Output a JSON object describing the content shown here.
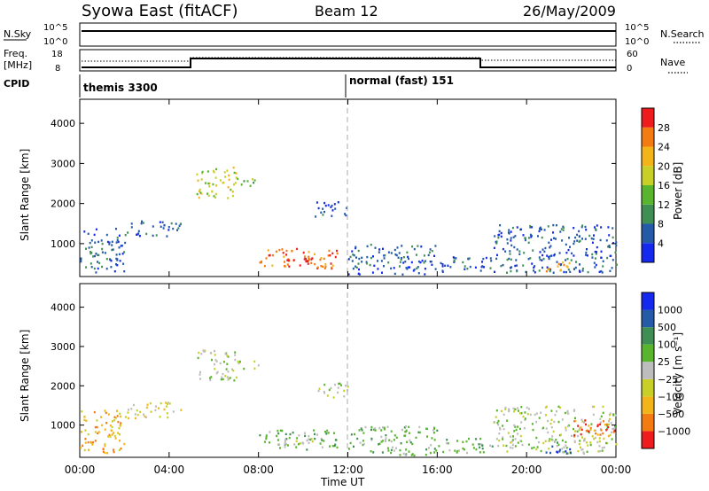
{
  "header": {
    "title": "Syowa East (fitACF)",
    "beam": "Beam 12",
    "date": "26/May/2009"
  },
  "status_panels": {
    "nsky_label": "N.Sky",
    "nsky_ticks": [
      "10^5",
      "10^0"
    ],
    "nsearch_label": "N.Search",
    "nsearch_ticks": [
      "10^5",
      "10^0"
    ],
    "freq_label_line1": "Freq.",
    "freq_label_line2": "[MHz]",
    "freq_ticks": [
      "18",
      "8"
    ],
    "nave_label": "Nave",
    "nave_ticks": [
      "60",
      "0"
    ],
    "cpid_label": "CPID",
    "cpid_segments": [
      {
        "name": "themis",
        "text": "themis 3300"
      },
      {
        "name": "normal",
        "text": "normal (fast) 151"
      }
    ]
  },
  "chart_data": [
    {
      "type": "heatmap",
      "panel": "power",
      "ylabel": "Slant Range [km]",
      "ylim": [
        180,
        4600
      ],
      "yticks": [
        "1000",
        "2000",
        "3000",
        "4000"
      ],
      "xticks": [
        "00:00",
        "04:00",
        "08:00",
        "12:00",
        "16:00",
        "20:00",
        "00:00"
      ],
      "colorbar_label": "Power [dB]",
      "colorbar_ticks": [
        "4",
        "8",
        "12",
        "16",
        "20",
        "24",
        "28"
      ],
      "colors": [
        "#1428ee",
        "#245aa8",
        "#3f8f55",
        "#5ab52e",
        "#c8d028",
        "#f2b418",
        "#f47a12",
        "#ee1c1c"
      ],
      "regions": [
        {
          "t0": 0.0,
          "t1": 2.0,
          "r0": 300,
          "r1": 1400,
          "v": 1
        },
        {
          "t0": 2.0,
          "t1": 4.5,
          "r0": 1200,
          "r1": 1600,
          "v": 1
        },
        {
          "t0": 5.2,
          "t1": 7.0,
          "r0": 2150,
          "r1": 2950,
          "v": 4
        },
        {
          "t0": 7.0,
          "t1": 8.0,
          "r0": 2400,
          "r1": 2650,
          "v": 3
        },
        {
          "t0": 8.0,
          "t1": 11.5,
          "r0": 400,
          "r1": 900,
          "v": 6
        },
        {
          "t0": 9.0,
          "t1": 10.5,
          "r0": 450,
          "r1": 700,
          "v": 7
        },
        {
          "t0": 10.5,
          "t1": 12.0,
          "r0": 1700,
          "r1": 2100,
          "v": 1
        },
        {
          "t0": 12.0,
          "t1": 16.0,
          "r0": 250,
          "r1": 1000,
          "v": 1
        },
        {
          "t0": 16.0,
          "t1": 18.5,
          "r0": 300,
          "r1": 700,
          "v": 1
        },
        {
          "t0": 18.5,
          "t1": 24.0,
          "r0": 300,
          "r1": 1500,
          "v": 1
        },
        {
          "t0": 20.8,
          "t1": 22.0,
          "r0": 300,
          "r1": 600,
          "v": 5
        }
      ]
    },
    {
      "type": "heatmap",
      "panel": "velocity",
      "ylabel": "Slant Range [km]",
      "ylim": [
        180,
        4600
      ],
      "yticks": [
        "1000",
        "2000",
        "3000",
        "4000"
      ],
      "xticks": [
        "00:00",
        "04:00",
        "08:00",
        "12:00",
        "16:00",
        "20:00",
        "00:00"
      ],
      "xlabel": "Time UT",
      "colorbar_label": "Velocity [m s⁻¹]",
      "colorbar_ticks": [
        "1000",
        "500",
        "100",
        "25",
        "−25",
        "−100",
        "−500",
        "−1000"
      ],
      "colors": [
        "#ee1c1c",
        "#f47a12",
        "#f2b418",
        "#c8d028",
        "#bdbdbd",
        "#5ab52e",
        "#3f8f55",
        "#245aa8",
        "#1428ee"
      ],
      "regions": [
        {
          "t0": 0.0,
          "t1": 2.0,
          "r0": 300,
          "r1": 1400,
          "v": 2
        },
        {
          "t0": 2.0,
          "t1": 4.5,
          "r0": 1200,
          "r1": 1600,
          "v": 3
        },
        {
          "t0": 5.2,
          "t1": 7.0,
          "r0": 2150,
          "r1": 2950,
          "v": 4
        },
        {
          "t0": 7.0,
          "t1": 8.0,
          "r0": 2400,
          "r1": 2650,
          "v": 4
        },
        {
          "t0": 8.0,
          "t1": 11.5,
          "r0": 400,
          "r1": 900,
          "v": 5
        },
        {
          "t0": 9.0,
          "t1": 10.5,
          "r0": 450,
          "r1": 700,
          "v": 4
        },
        {
          "t0": 10.5,
          "t1": 12.0,
          "r0": 1700,
          "r1": 2100,
          "v": 4
        },
        {
          "t0": 12.0,
          "t1": 16.0,
          "r0": 250,
          "r1": 1000,
          "v": 5
        },
        {
          "t0": 16.0,
          "t1": 18.5,
          "r0": 300,
          "r1": 700,
          "v": 5
        },
        {
          "t0": 18.5,
          "t1": 24.0,
          "r0": 300,
          "r1": 1500,
          "v": 4
        },
        {
          "t0": 20.8,
          "t1": 22.0,
          "r0": 300,
          "r1": 600,
          "v": 7
        },
        {
          "t0": 22.0,
          "t1": 24.0,
          "r0": 700,
          "r1": 1200,
          "v": 1
        }
      ]
    }
  ]
}
